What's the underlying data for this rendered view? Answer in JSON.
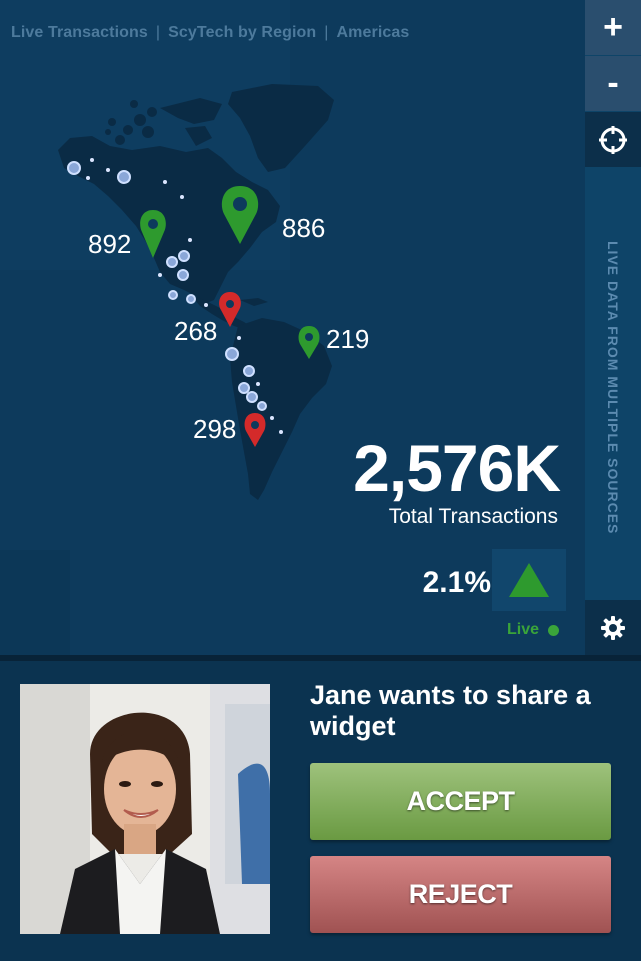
{
  "breadcrumb": {
    "items": [
      "Live Transactions",
      "ScyTech by Region",
      "Americas"
    ],
    "separator": "|"
  },
  "map": {
    "markers": [
      {
        "label": "892",
        "status": "green"
      },
      {
        "label": "886",
        "status": "green"
      },
      {
        "label": "268",
        "status": "red"
      },
      {
        "label": "219",
        "status": "green"
      },
      {
        "label": "298",
        "status": "red"
      }
    ]
  },
  "summary": {
    "total_value": "2,576K",
    "total_caption": "Total Transactions",
    "change": "2.1%",
    "trend": "up",
    "live_label": "Live"
  },
  "toolbar": {
    "zoom_in": "+",
    "zoom_out": "-",
    "vertical_label": "LIVE DATA FROM MULTIPLE SOURCES"
  },
  "share_request": {
    "title": "Jane wants to share a widget",
    "accept_label": "ACCEPT",
    "reject_label": "REJECT"
  },
  "colors": {
    "background": "#0b3350",
    "map_land": "#0a2b45",
    "marker_green": "#2e9a2e",
    "marker_red": "#d42a2a",
    "accept": "#7fae58",
    "reject": "#b96666",
    "live": "#3aa43a"
  }
}
